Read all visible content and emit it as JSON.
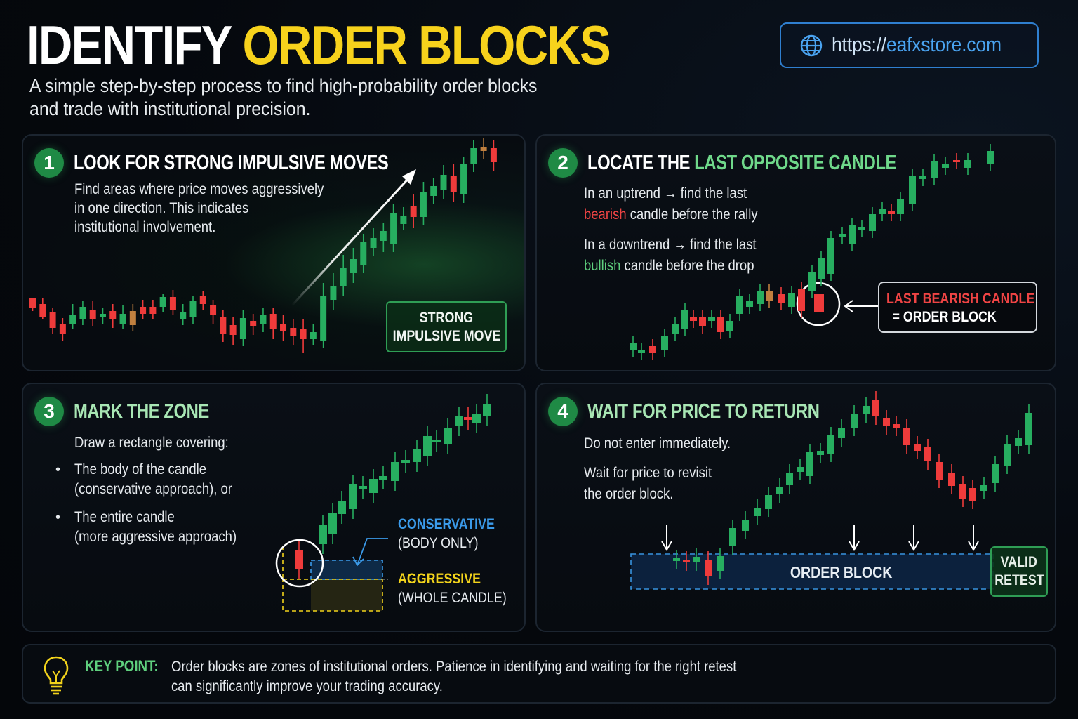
{
  "header": {
    "title_white": "IDENTIFY",
    "title_yellow": "ORDER BLOCKS",
    "subtitle_line1": "A simple step-by-step process to find high-probability order blocks",
    "subtitle_line2": "and trade with institutional precision.",
    "url_proto": "https://",
    "url_domain": "eafxstore.com",
    "url_icon": "globe-icon"
  },
  "colors": {
    "title_yellow": "#f7d21c",
    "bull": "#27ae60",
    "bear": "#ef3b3b",
    "doji": "#c0803f",
    "badge": "#1f8a45",
    "accent_green": "#6fd88a",
    "link_blue": "#4aa3f0",
    "conservative_blue": "#3b9bea",
    "aggressive_yellow": "#f2d31b"
  },
  "steps": [
    {
      "number": "1",
      "title": "LOOK FOR STRONG IMPULSIVE MOVES",
      "text": [
        "Find areas where price moves aggressively",
        "in one direction. This indicates",
        "institutional involvement."
      ],
      "callout": [
        "STRONG",
        "IMPULSIVE MOVE"
      ]
    },
    {
      "number": "2",
      "title_white": "LOCATE THE ",
      "title_accent": "LAST OPPOSITE CANDLE",
      "line1": "In an uptrend → find the last",
      "line2_red": "bearish",
      "line2_rest": " candle before the rally",
      "line3": "In a downtrend → find the last",
      "line4_green": "bullish",
      "line4_rest": " candle before the drop",
      "callout_line1": "LAST BEARISH CANDLE",
      "callout_line2": "= ORDER BLOCK"
    },
    {
      "number": "3",
      "title": "MARK THE ZONE",
      "intro": "Draw a rectangle covering:",
      "bullets": [
        [
          "The body of the candle",
          "(conservative approach), or"
        ],
        [
          "The entire candle",
          "(more aggressive approach)"
        ]
      ],
      "conservative_label": "CONSERVATIVE",
      "conservative_sub": "(BODY ONLY)",
      "aggressive_label": "AGGRESSIVE",
      "aggressive_sub": "(WHOLE CANDLE)"
    },
    {
      "number": "4",
      "title": "WAIT FOR PRICE TO RETURN",
      "line1": "Do not enter immediately.",
      "line2": "Wait for price to revisit",
      "line3": "the order block.",
      "zone_label": "ORDER BLOCK",
      "callout": [
        "VALID",
        "RETEST"
      ]
    }
  ],
  "key_point": {
    "label": "KEY POINT:",
    "line1": "Order blocks are zones of institutional orders. Patience in identifying and waiting for the right retest",
    "line2": "can significantly improve your trading accuracy.",
    "icon": "lightbulb-icon"
  },
  "chart_data": [
    {
      "id": "step1",
      "type": "candlestick",
      "description": "Sideways range followed by strong bullish impulse",
      "candles": [
        [
          8,
          -3,
          232,
          246,
          236,
          250,
          "bear"
        ],
        [
          20,
          -3,
          240,
          258,
          232,
          262,
          "bear"
        ],
        [
          32,
          -3,
          252,
          274,
          246,
          282,
          "bear"
        ],
        [
          44,
          -3,
          268,
          282,
          260,
          292,
          "bear"
        ],
        [
          56,
          -3,
          256,
          268,
          240,
          276,
          "bull"
        ],
        [
          68,
          -3,
          244,
          262,
          236,
          270,
          "bull"
        ],
        [
          80,
          -3,
          248,
          262,
          236,
          272,
          "bear"
        ],
        [
          92,
          -3,
          254,
          258,
          246,
          268,
          "bull"
        ],
        [
          104,
          -3,
          250,
          262,
          240,
          274,
          "bear"
        ],
        [
          116,
          -3,
          254,
          268,
          242,
          276,
          "bull"
        ],
        [
          128,
          -3,
          250,
          270,
          240,
          278,
          "doji"
        ],
        [
          140,
          -3,
          244,
          254,
          234,
          262,
          "bear"
        ],
        [
          152,
          -3,
          244,
          254,
          234,
          262,
          "bear"
        ],
        [
          164,
          -3,
          230,
          244,
          226,
          252,
          "bull"
        ],
        [
          176,
          -3,
          230,
          248,
          220,
          256,
          "bear"
        ],
        [
          188,
          -3,
          252,
          262,
          240,
          270,
          "bull"
        ],
        [
          200,
          -3,
          236,
          258,
          228,
          268,
          "bull"
        ],
        [
          212,
          -3,
          228,
          240,
          222,
          248,
          "bear"
        ],
        [
          224,
          -3,
          242,
          256,
          234,
          268,
          "bear"
        ],
        [
          236,
          -3,
          258,
          282,
          248,
          294,
          "bear"
        ],
        [
          248,
          -3,
          270,
          284,
          258,
          298,
          "bear"
        ],
        [
          260,
          -3,
          260,
          290,
          248,
          300,
          "bull"
        ],
        [
          272,
          -3,
          264,
          272,
          254,
          284,
          "bear"
        ],
        [
          284,
          -3,
          256,
          268,
          246,
          280,
          "bull"
        ],
        [
          296,
          -3,
          254,
          276,
          246,
          290,
          "bear"
        ],
        [
          308,
          -3,
          268,
          278,
          256,
          292,
          "bear"
        ],
        [
          320,
          -3,
          274,
          286,
          262,
          298,
          "bear"
        ],
        [
          332,
          -3,
          276,
          290,
          262,
          310,
          "bear"
        ],
        [
          344,
          -3,
          280,
          290,
          268,
          298,
          "bull"
        ],
        [
          356,
          -3,
          228,
          292,
          210,
          302,
          "bull"
        ],
        [
          368,
          -3,
          214,
          234,
          196,
          248,
          "bull"
        ],
        [
          380,
          -3,
          188,
          214,
          170,
          228,
          "bull"
        ],
        [
          392,
          -3,
          176,
          196,
          160,
          210,
          "bull"
        ],
        [
          404,
          -3,
          152,
          184,
          140,
          196,
          "bull"
        ],
        [
          416,
          -3,
          146,
          160,
          132,
          172,
          "bull"
        ],
        [
          428,
          -3,
          136,
          150,
          124,
          166,
          "bull"
        ],
        [
          440,
          -3,
          110,
          154,
          98,
          166,
          "bull"
        ],
        [
          452,
          -3,
          114,
          126,
          102,
          134,
          "bull"
        ],
        [
          464,
          -3,
          100,
          116,
          84,
          132,
          "bear"
        ],
        [
          476,
          -3,
          80,
          116,
          66,
          128,
          "bull"
        ],
        [
          488,
          -3,
          72,
          86,
          60,
          98,
          "bull"
        ],
        [
          500,
          -3,
          56,
          78,
          42,
          90,
          "bull"
        ],
        [
          512,
          -3,
          58,
          80,
          40,
          94,
          "bear"
        ],
        [
          524,
          -3,
          40,
          84,
          30,
          96,
          "bull"
        ],
        [
          536,
          -3,
          18,
          40,
          6,
          52,
          "bull"
        ],
        [
          548,
          -3,
          16,
          22,
          4,
          34,
          "doji"
        ],
        [
          560,
          -3,
          18,
          38,
          6,
          50,
          "bear"
        ]
      ]
    },
    {
      "id": "step2",
      "type": "candlestick",
      "description": "Gradual uptrend; last bearish candle before the rally circled as order block"
    },
    {
      "id": "step3",
      "type": "candlestick",
      "description": "Bearish candle followed by rally; conservative (body only) and aggressive (whole candle) zones marked"
    },
    {
      "id": "step4",
      "type": "candlestick",
      "description": "Rally away from order block, pullback, and valid retest of the order block zone"
    }
  ]
}
